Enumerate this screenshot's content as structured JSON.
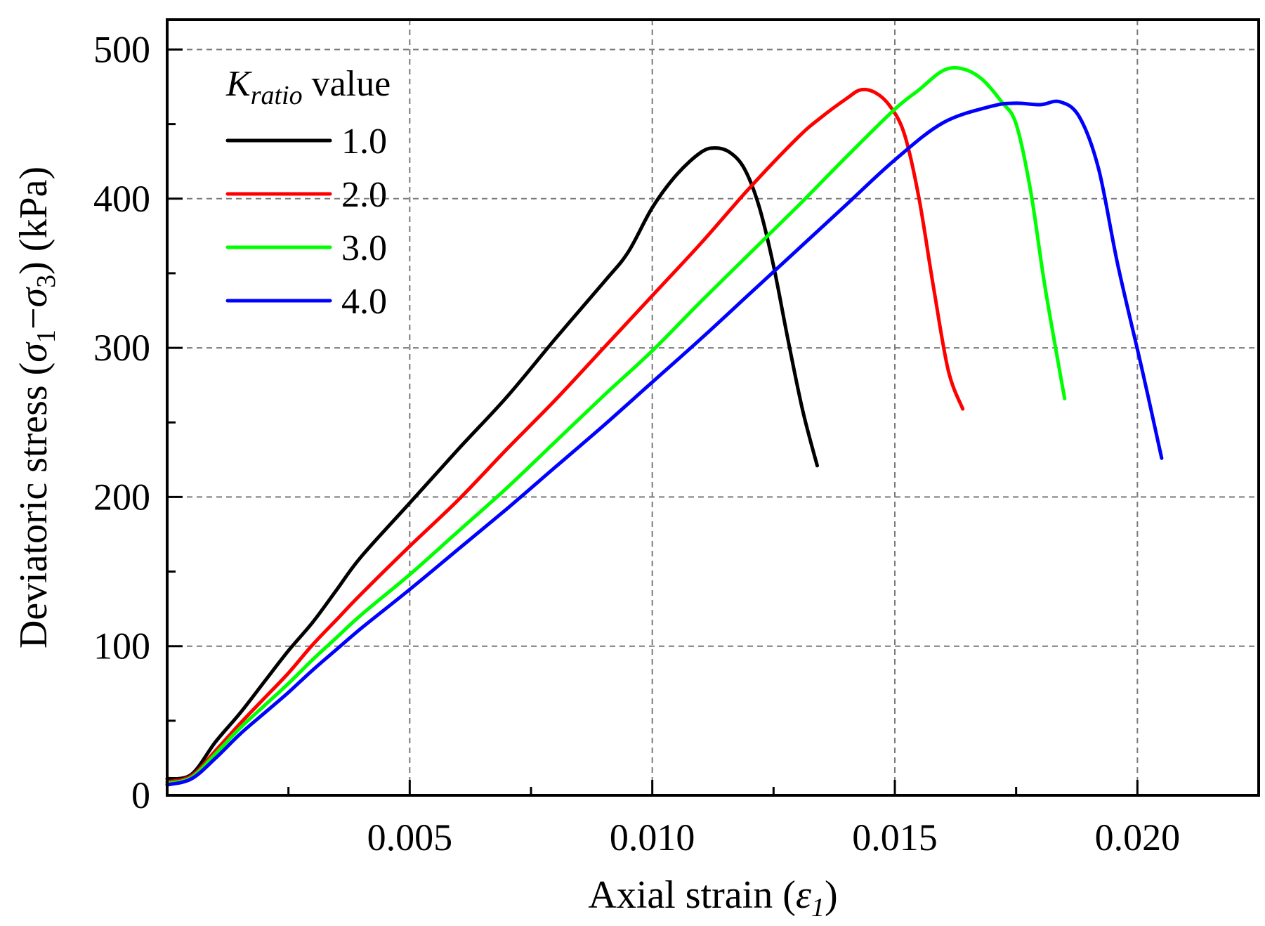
{
  "chart_data": {
    "type": "line",
    "title": "",
    "xlabel": "Axial strain (",
    "xlabel_symbol": "ε",
    "xlabel_sub": "1",
    "xlabel_close": ")",
    "ylabel": "Deviatoric stress (",
    "ylabel_sigma": "σ",
    "ylabel_sub1": "1",
    "ylabel_dash": "−",
    "ylabel_sub3": "3",
    "ylabel_close": ") (kPa)",
    "xlim": [
      0,
      0.0225
    ],
    "ylim": [
      0,
      520
    ],
    "x_major_ticks": [
      0.005,
      0.01,
      0.015,
      0.02
    ],
    "x_minor_ticks": [
      0.0025,
      0.0075,
      0.0125,
      0.0175
    ],
    "x_tick_labels": [
      "0.005",
      "0.010",
      "0.015",
      "0.020"
    ],
    "y_major_ticks": [
      0,
      100,
      200,
      300,
      400,
      500
    ],
    "y_minor_ticks": [
      50,
      150,
      250,
      350,
      450
    ],
    "y_tick_labels": [
      "0",
      "100",
      "200",
      "300",
      "400",
      "500"
    ],
    "grid": true,
    "legend": {
      "position": "top-left",
      "title_main": "K",
      "title_sub": "ratio",
      "title_rest": " value"
    },
    "series": [
      {
        "name": "1.0",
        "color": "#000000",
        "points": [
          [
            0,
            11
          ],
          [
            0.0005,
            14
          ],
          [
            0.001,
            36
          ],
          [
            0.0015,
            55
          ],
          [
            0.002,
            76
          ],
          [
            0.0025,
            97
          ],
          [
            0.003,
            116
          ],
          [
            0.0035,
            138
          ],
          [
            0.004,
            160
          ],
          [
            0.005,
            196
          ],
          [
            0.006,
            232
          ],
          [
            0.007,
            267
          ],
          [
            0.008,
            306
          ],
          [
            0.009,
            344
          ],
          [
            0.0095,
            364
          ],
          [
            0.01,
            394
          ],
          [
            0.0105,
            416
          ],
          [
            0.011,
            431
          ],
          [
            0.0113,
            434
          ],
          [
            0.0116,
            431
          ],
          [
            0.0119,
            420
          ],
          [
            0.0122,
            395
          ],
          [
            0.0125,
            355
          ],
          [
            0.0128,
            305
          ],
          [
            0.0131,
            258
          ],
          [
            0.0134,
            221
          ]
        ]
      },
      {
        "name": "2.0",
        "color": "#ff0000",
        "points": [
          [
            0,
            9
          ],
          [
            0.0005,
            13
          ],
          [
            0.001,
            30
          ],
          [
            0.0015,
            48
          ],
          [
            0.002,
            65
          ],
          [
            0.0025,
            82
          ],
          [
            0.003,
            101
          ],
          [
            0.0035,
            118
          ],
          [
            0.004,
            135
          ],
          [
            0.005,
            167
          ],
          [
            0.006,
            198
          ],
          [
            0.007,
            232
          ],
          [
            0.008,
            265
          ],
          [
            0.009,
            300
          ],
          [
            0.01,
            335
          ],
          [
            0.011,
            370
          ],
          [
            0.012,
            407
          ],
          [
            0.013,
            441
          ],
          [
            0.0135,
            455
          ],
          [
            0.014,
            467
          ],
          [
            0.0143,
            473
          ],
          [
            0.0146,
            471
          ],
          [
            0.0149,
            462
          ],
          [
            0.0152,
            443
          ],
          [
            0.0155,
            400
          ],
          [
            0.0158,
            340
          ],
          [
            0.0161,
            285
          ],
          [
            0.0164,
            259
          ]
        ]
      },
      {
        "name": "3.0",
        "color": "#00ff00",
        "points": [
          [
            0,
            8
          ],
          [
            0.0005,
            12
          ],
          [
            0.001,
            28
          ],
          [
            0.0015,
            45
          ],
          [
            0.002,
            60
          ],
          [
            0.0025,
            75
          ],
          [
            0.003,
            91
          ],
          [
            0.0035,
            106
          ],
          [
            0.004,
            121
          ],
          [
            0.005,
            148
          ],
          [
            0.006,
            177
          ],
          [
            0.007,
            206
          ],
          [
            0.008,
            237
          ],
          [
            0.009,
            268
          ],
          [
            0.01,
            298
          ],
          [
            0.011,
            331
          ],
          [
            0.012,
            363
          ],
          [
            0.013,
            395
          ],
          [
            0.014,
            428
          ],
          [
            0.015,
            460
          ],
          [
            0.0155,
            473
          ],
          [
            0.016,
            486
          ],
          [
            0.0164,
            487
          ],
          [
            0.0168,
            480
          ],
          [
            0.0172,
            465
          ],
          [
            0.0175,
            450
          ],
          [
            0.0178,
            405
          ],
          [
            0.0181,
            340
          ],
          [
            0.0185,
            266
          ]
        ]
      },
      {
        "name": "4.0",
        "color": "#0000ff",
        "points": [
          [
            0,
            7
          ],
          [
            0.0005,
            11
          ],
          [
            0.001,
            25
          ],
          [
            0.0015,
            41
          ],
          [
            0.002,
            55
          ],
          [
            0.0025,
            69
          ],
          [
            0.003,
            84
          ],
          [
            0.0035,
            98
          ],
          [
            0.004,
            112
          ],
          [
            0.005,
            138
          ],
          [
            0.006,
            165
          ],
          [
            0.007,
            192
          ],
          [
            0.008,
            220
          ],
          [
            0.009,
            248
          ],
          [
            0.01,
            277
          ],
          [
            0.011,
            306
          ],
          [
            0.012,
            336
          ],
          [
            0.013,
            366
          ],
          [
            0.014,
            396
          ],
          [
            0.015,
            426
          ],
          [
            0.016,
            451
          ],
          [
            0.017,
            462
          ],
          [
            0.0175,
            464
          ],
          [
            0.018,
            463
          ],
          [
            0.0184,
            465
          ],
          [
            0.0188,
            455
          ],
          [
            0.0192,
            420
          ],
          [
            0.0196,
            355
          ],
          [
            0.0201,
            285
          ],
          [
            0.0205,
            226
          ]
        ]
      }
    ]
  }
}
